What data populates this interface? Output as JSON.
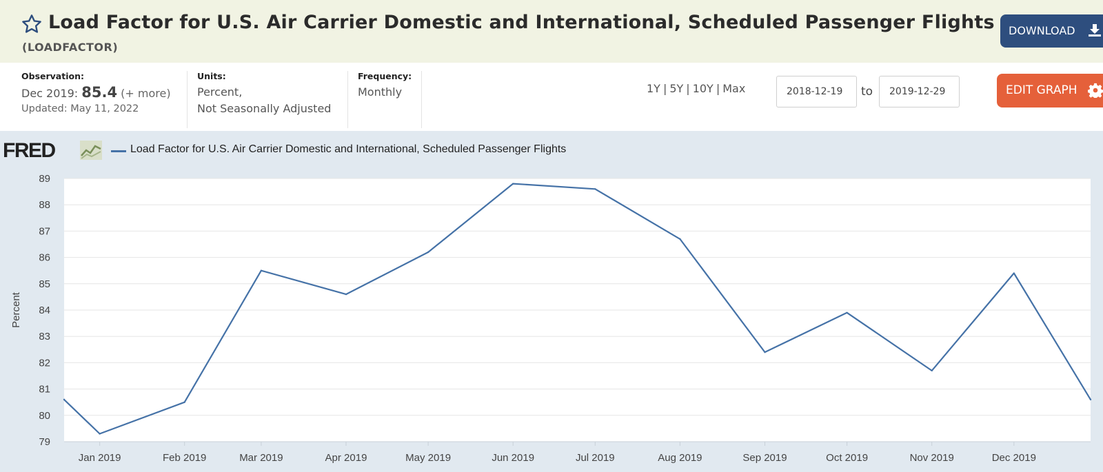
{
  "header": {
    "title": "Load Factor for U.S. Air Carrier Domestic and International, Scheduled Passenger Flights",
    "series_id": "(LOADFACTOR)",
    "download_label": "DOWNLOAD"
  },
  "meta": {
    "observation_label": "Observation:",
    "observation_date": "Dec 2019:",
    "observation_value": "85.4",
    "observation_more": "(+ more)",
    "updated": "Updated: May 11, 2022",
    "units_label": "Units:",
    "units_line1": "Percent,",
    "units_line2": "Not Seasonally Adjusted",
    "frequency_label": "Frequency:",
    "frequency_value": "Monthly"
  },
  "controls": {
    "ranges": [
      "1Y",
      "5Y",
      "10Y",
      "Max"
    ],
    "start_date": "2018-12-19",
    "to_label": "to",
    "end_date": "2019-12-29",
    "edit_label": "EDIT GRAPH"
  },
  "colors": {
    "line": "#4572a7",
    "download": "#2e4e7e",
    "edit": "#e5603a",
    "header_bg": "#f1f3e3",
    "chart_bg": "#e1e9f0"
  },
  "icons": {
    "favorite": "star-icon",
    "download": "download-icon",
    "edit": "gear-icon",
    "logo_graph": "chart-line-icon"
  },
  "chart_data": {
    "type": "line",
    "legend": "Load Factor for U.S. Air Carrier Domestic and International, Scheduled Passenger Flights",
    "logo": "FRED",
    "ylabel": "Percent",
    "ylim": [
      79,
      89
    ],
    "yticks": [
      79,
      80,
      81,
      82,
      83,
      84,
      85,
      86,
      87,
      88,
      89
    ],
    "grid": true,
    "categories": [
      "Jan 2019",
      "Feb 2019",
      "Mar 2019",
      "Apr 2019",
      "May 2019",
      "Jun 2019",
      "Jul 2019",
      "Aug 2019",
      "Sep 2019",
      "Oct 2019",
      "Nov 2019",
      "Dec 2019"
    ],
    "x_range": [
      "2018-12-19",
      "2019-12-29"
    ],
    "series": [
      {
        "x": [
          "2018-12-19",
          "2019-01-01",
          "2019-02-01",
          "2019-03-01",
          "2019-04-01",
          "2019-05-01",
          "2019-06-01",
          "2019-07-01",
          "2019-08-01",
          "2019-09-01",
          "2019-10-01",
          "2019-11-01",
          "2019-12-01",
          "2019-12-29"
        ],
        "values": [
          80.6,
          79.3,
          80.5,
          85.5,
          84.6,
          86.2,
          88.8,
          88.6,
          86.7,
          82.4,
          83.9,
          81.7,
          85.4,
          80.6
        ]
      }
    ]
  }
}
